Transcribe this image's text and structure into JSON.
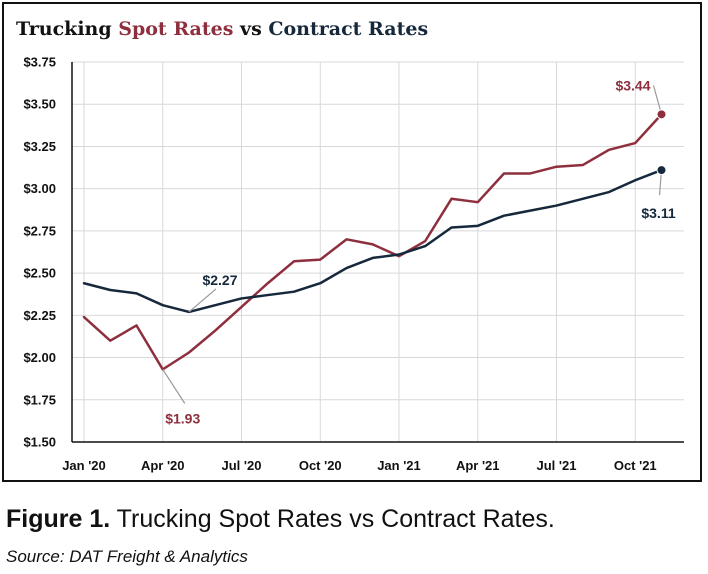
{
  "title": {
    "part1": "Trucking ",
    "part2": "Spot Rates",
    "part3": " vs ",
    "part4": "Contract Rates"
  },
  "caption": {
    "label": "Figure 1.",
    "text": " Trucking Spot Rates vs Contract Rates."
  },
  "source": "Source: DAT Freight & Analytics",
  "colors": {
    "spot": "#8e2f3d",
    "contract": "#16283b",
    "grid": "#d9d9d9",
    "leader": "#9a9a9a",
    "axis": "#111111"
  },
  "chart_data": {
    "type": "line",
    "title": "Trucking Spot Rates vs Contract Rates",
    "x": [
      "2020-01",
      "2020-02",
      "2020-03",
      "2020-04",
      "2020-05",
      "2020-06",
      "2020-07",
      "2020-08",
      "2020-09",
      "2020-10",
      "2020-11",
      "2020-12",
      "2021-01",
      "2021-02",
      "2021-03",
      "2021-04",
      "2021-05",
      "2021-06",
      "2021-07",
      "2021-08",
      "2021-09",
      "2021-10",
      "2021-11"
    ],
    "x_ticks": [
      {
        "x": "2020-01",
        "label": "Jan '20"
      },
      {
        "x": "2020-04",
        "label": "Apr '20"
      },
      {
        "x": "2020-07",
        "label": "Jul '20"
      },
      {
        "x": "2020-10",
        "label": "Oct '20"
      },
      {
        "x": "2021-01",
        "label": "Jan '21"
      },
      {
        "x": "2021-04",
        "label": "Apr '21"
      },
      {
        "x": "2021-07",
        "label": "Jul '21"
      },
      {
        "x": "2021-10",
        "label": "Oct '21"
      }
    ],
    "y_ticks": [
      "$1.50",
      "$1.75",
      "$2.00",
      "$2.25",
      "$2.50",
      "$2.75",
      "$3.00",
      "$3.25",
      "$3.50",
      "$3.75"
    ],
    "ylim": [
      1.5,
      3.75
    ],
    "grid": true,
    "legend": "none",
    "series": [
      {
        "key": "spot",
        "values": [
          2.24,
          2.1,
          2.19,
          1.93,
          2.03,
          2.16,
          2.3,
          2.44,
          2.57,
          2.58,
          2.7,
          2.67,
          2.6,
          2.69,
          2.94,
          2.92,
          3.09,
          3.09,
          3.13,
          3.14,
          3.23,
          3.27,
          3.44
        ]
      },
      {
        "key": "contract",
        "values": [
          2.44,
          2.4,
          2.38,
          2.31,
          2.27,
          2.31,
          2.35,
          2.37,
          2.39,
          2.44,
          2.53,
          2.59,
          2.61,
          2.66,
          2.77,
          2.78,
          2.84,
          2.87,
          2.9,
          2.94,
          2.98,
          3.05,
          3.11
        ]
      }
    ],
    "annotations": [
      {
        "series": "spot",
        "x": "2020-04",
        "label": "$1.93"
      },
      {
        "series": "contract",
        "x": "2020-05",
        "label": "$2.27"
      },
      {
        "series": "spot",
        "x": "2021-11",
        "label": "$3.44"
      },
      {
        "series": "contract",
        "x": "2021-11",
        "label": "$3.11"
      }
    ]
  }
}
